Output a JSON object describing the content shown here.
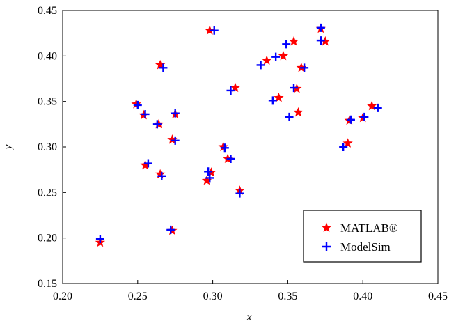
{
  "chart_data": {
    "type": "scatter",
    "title": "",
    "xlabel": "x",
    "ylabel": "y",
    "xlim": [
      0.2,
      0.45
    ],
    "ylim": [
      0.15,
      0.45
    ],
    "x_ticks": [
      0.2,
      0.25,
      0.3,
      0.35,
      0.4,
      0.45
    ],
    "y_ticks": [
      0.15,
      0.2,
      0.25,
      0.3,
      0.35,
      0.4,
      0.45
    ],
    "x_tick_labels": [
      "0.20",
      "0.25",
      "0.30",
      "0.35",
      "0.40",
      "0.45"
    ],
    "y_tick_labels": [
      "0.15",
      "0.20",
      "0.25",
      "0.30",
      "0.35",
      "0.40",
      "0.45"
    ],
    "grid": false,
    "legend_position": "bottom-right",
    "series": [
      {
        "name": "MATLAB®",
        "marker": "star",
        "color": "#ff0000",
        "points": [
          {
            "x": 0.225,
            "y": 0.195
          },
          {
            "x": 0.249,
            "y": 0.347
          },
          {
            "x": 0.254,
            "y": 0.335
          },
          {
            "x": 0.255,
            "y": 0.28
          },
          {
            "x": 0.264,
            "y": 0.325
          },
          {
            "x": 0.265,
            "y": 0.27
          },
          {
            "x": 0.265,
            "y": 0.39
          },
          {
            "x": 0.273,
            "y": 0.308
          },
          {
            "x": 0.275,
            "y": 0.336
          },
          {
            "x": 0.273,
            "y": 0.208
          },
          {
            "x": 0.296,
            "y": 0.263
          },
          {
            "x": 0.298,
            "y": 0.428
          },
          {
            "x": 0.299,
            "y": 0.272
          },
          {
            "x": 0.307,
            "y": 0.3
          },
          {
            "x": 0.31,
            "y": 0.287
          },
          {
            "x": 0.315,
            "y": 0.365
          },
          {
            "x": 0.318,
            "y": 0.252
          },
          {
            "x": 0.336,
            "y": 0.395
          },
          {
            "x": 0.344,
            "y": 0.354
          },
          {
            "x": 0.347,
            "y": 0.4
          },
          {
            "x": 0.354,
            "y": 0.416
          },
          {
            "x": 0.356,
            "y": 0.364
          },
          {
            "x": 0.357,
            "y": 0.338
          },
          {
            "x": 0.359,
            "y": 0.387
          },
          {
            "x": 0.372,
            "y": 0.43
          },
          {
            "x": 0.375,
            "y": 0.416
          },
          {
            "x": 0.39,
            "y": 0.304
          },
          {
            "x": 0.391,
            "y": 0.329
          },
          {
            "x": 0.4,
            "y": 0.332
          },
          {
            "x": 0.406,
            "y": 0.345
          }
        ]
      },
      {
        "name": "ModelSim",
        "marker": "plus",
        "color": "#0000ff",
        "points": [
          {
            "x": 0.225,
            "y": 0.199
          },
          {
            "x": 0.25,
            "y": 0.346
          },
          {
            "x": 0.255,
            "y": 0.336
          },
          {
            "x": 0.257,
            "y": 0.282
          },
          {
            "x": 0.263,
            "y": 0.325
          },
          {
            "x": 0.266,
            "y": 0.268
          },
          {
            "x": 0.267,
            "y": 0.387
          },
          {
            "x": 0.275,
            "y": 0.307
          },
          {
            "x": 0.275,
            "y": 0.337
          },
          {
            "x": 0.272,
            "y": 0.209
          },
          {
            "x": 0.298,
            "y": 0.266
          },
          {
            "x": 0.301,
            "y": 0.428
          },
          {
            "x": 0.297,
            "y": 0.273
          },
          {
            "x": 0.308,
            "y": 0.299
          },
          {
            "x": 0.312,
            "y": 0.287
          },
          {
            "x": 0.312,
            "y": 0.362
          },
          {
            "x": 0.318,
            "y": 0.249
          },
          {
            "x": 0.332,
            "y": 0.39
          },
          {
            "x": 0.34,
            "y": 0.351
          },
          {
            "x": 0.342,
            "y": 0.399
          },
          {
            "x": 0.349,
            "y": 0.413
          },
          {
            "x": 0.354,
            "y": 0.365
          },
          {
            "x": 0.351,
            "y": 0.333
          },
          {
            "x": 0.361,
            "y": 0.387
          },
          {
            "x": 0.372,
            "y": 0.431
          },
          {
            "x": 0.372,
            "y": 0.417
          },
          {
            "x": 0.387,
            "y": 0.3
          },
          {
            "x": 0.392,
            "y": 0.33
          },
          {
            "x": 0.401,
            "y": 0.333
          },
          {
            "x": 0.41,
            "y": 0.343
          }
        ]
      }
    ]
  }
}
